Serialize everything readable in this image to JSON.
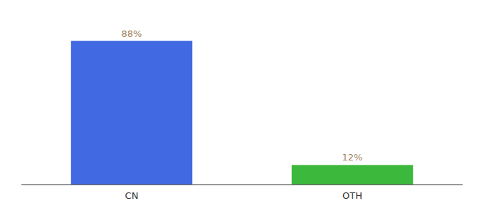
{
  "chart_data": {
    "type": "bar",
    "categories": [
      "CN",
      "OTH"
    ],
    "values": [
      88,
      12
    ],
    "value_labels": [
      "88%",
      "12%"
    ],
    "colors": [
      "#4169e1",
      "#3cb83c"
    ],
    "ylim": [
      0,
      100
    ],
    "data_labels": true,
    "tick_labels": "x"
  }
}
